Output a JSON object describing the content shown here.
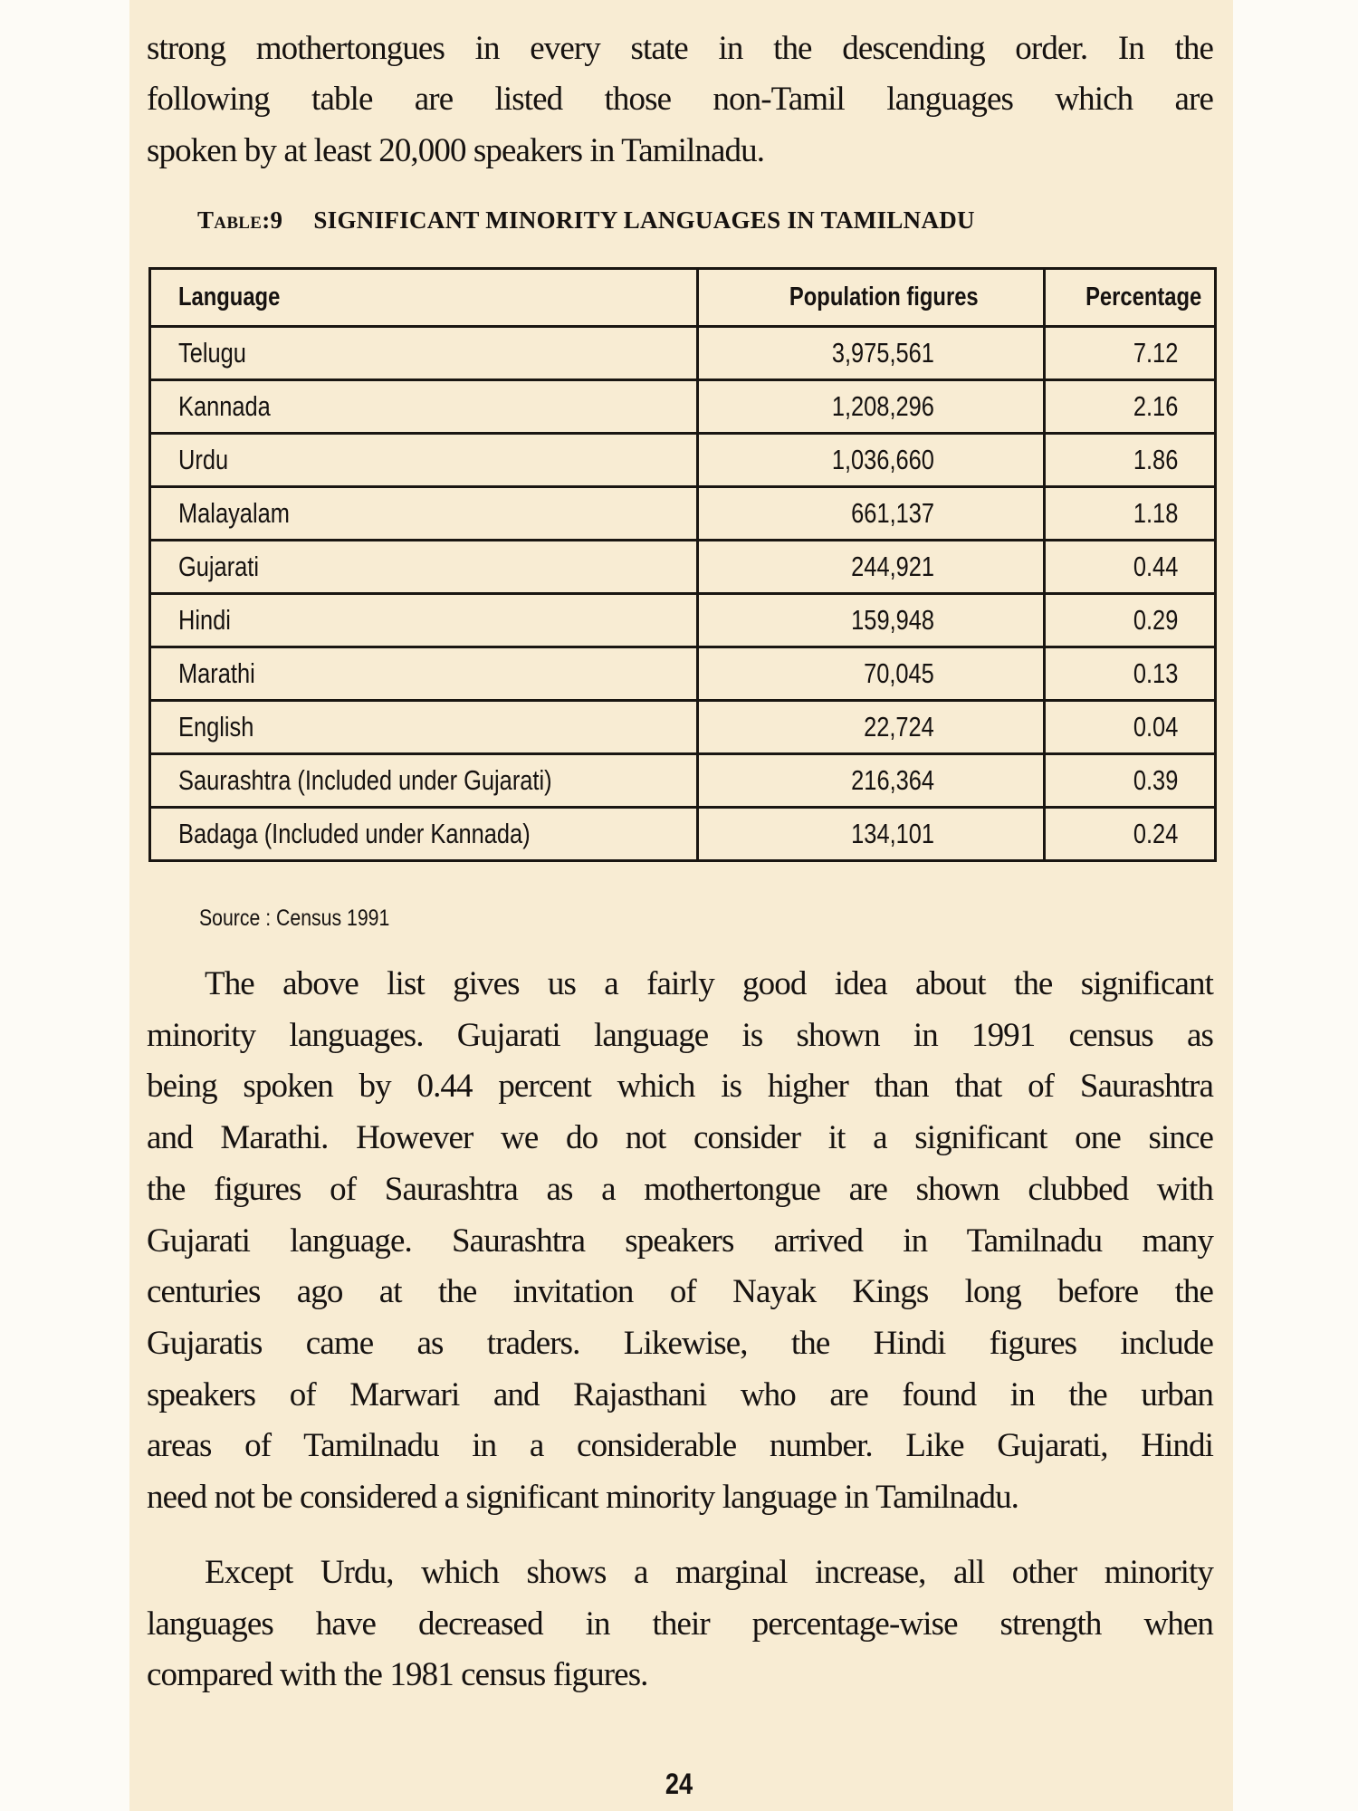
{
  "intro_lines": [
    "strong mothertongues in every state in the descending order.  In the",
    "following table are listed those non-Tamil languages which are",
    "spoken by at least 20,000 speakers in Tamilnadu."
  ],
  "table": {
    "caption_number": "Table:9",
    "caption_title": "SIGNIFICANT MINORITY LANGUAGES IN TAMILNADU",
    "headers": [
      "Language",
      "Population figures",
      "Percentage"
    ],
    "rows": [
      [
        "Telugu",
        "3,975,561",
        "7.12"
      ],
      [
        "Kannada",
        "1,208,296",
        "2.16"
      ],
      [
        "Urdu",
        "1,036,660",
        "1.86"
      ],
      [
        "Malayalam",
        "661,137",
        "1.18"
      ],
      [
        "Gujarati",
        "244,921",
        "0.44"
      ],
      [
        "Hindi",
        "159,948",
        "0.29"
      ],
      [
        "Marathi",
        "70,045",
        "0.13"
      ],
      [
        "English",
        "22,724",
        "0.04"
      ],
      [
        "Saurashtra (Included under Gujarati)",
        "216,364",
        "0.39"
      ],
      [
        "Badaga (Included under Kannada)",
        "134,101",
        "0.24"
      ]
    ],
    "source": "Source : Census 1991"
  },
  "para2_lines": [
    "The above list gives us a fairly good idea about the significant",
    "minority languages.  Gujarati language is shown in 1991 census as",
    "being spoken by 0.44 percent which is higher than that of Saurashtra",
    "and Marathi. However we do not consider it a significant one since",
    "the figures of Saurashtra as a mothertongue are shown clubbed with",
    "Gujarati language. Saurashtra speakers arrived in Tamilnadu many",
    "centuries ago at the invitation of Nayak Kings long before the",
    "Gujaratis came as traders. Likewise, the Hindi figures include",
    "speakers of Marwari and Rajasthani who are found in the urban",
    "areas of Tamilnadu in a considerable number. Like Gujarati, Hindi",
    "need not be considered a significant minority language in Tamilnadu."
  ],
  "para3_lines": [
    "Except Urdu, which shows a marginal increase, all other minority",
    "languages have decreased in their percentage-wise strength when",
    "compared with the 1981 census figures."
  ],
  "page_number": "24"
}
